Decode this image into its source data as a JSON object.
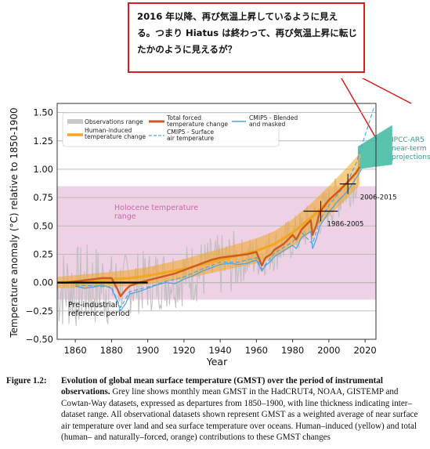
{
  "callout": {
    "lines": [
      "2016 年以降、再び気温上昇しているように見え",
      "る。つまり Hiatus は終わって、再び気温上昇に転じ",
      "たかのように見えるが？"
    ]
  },
  "chart_data": {
    "type": "line",
    "ylabel": "Temperature anomaly (°C) relative to 1850-1900",
    "xlabel": "Year",
    "xlim": [
      1850,
      2026
    ],
    "ylim": [
      -0.5,
      1.58
    ],
    "xticks": [
      1860,
      1880,
      1900,
      1920,
      1940,
      1960,
      1980,
      2000,
      2020
    ],
    "yticks": [
      "1.50",
      "1.25",
      "1.00",
      "0.75",
      "0.50",
      "0.25",
      "0.00",
      "−0.25",
      "−0.50"
    ],
    "legend_position": "top-left",
    "legend": [
      {
        "label": "Observations range",
        "style": "grey-band"
      },
      {
        "label": "Human-induced temperature change",
        "style": "yellow-line"
      },
      {
        "label": "Total forced temperature change",
        "style": "orange-line"
      },
      {
        "label": "CMIP5 - Surface air temperature",
        "style": "blue-dashed"
      },
      {
        "label": "CMIP5 - Blended and masked",
        "style": "blue-solid"
      }
    ],
    "holocene_range": {
      "label": "Holocene temperature range",
      "y": [
        -0.15,
        0.85
      ]
    },
    "preindustrial": {
      "label": "Pre-industrial reference period",
      "x": [
        1850,
        1900
      ],
      "y": 0.0
    },
    "ipcc_projection": {
      "label": "IPCC-AR5 near-term projections",
      "x": [
        2016,
        2035
      ],
      "y_low": [
        1.0,
        1.04
      ],
      "y_high": [
        1.2,
        1.39
      ]
    },
    "period_markers": [
      {
        "label": "1986-2005",
        "x": [
          1986,
          2005
        ],
        "y": 0.63
      },
      {
        "label": "2006-2015",
        "x": [
          2006,
          2015
        ],
        "y": 0.87
      }
    ],
    "colors": {
      "observations": "#bdbdbd",
      "human_induced": "#f2a623",
      "total_forced": "#cf5a1f",
      "cmip5": "#4aa3df",
      "holocene": "#e8c1dc",
      "projection": "#3cb8a0"
    },
    "series": [
      {
        "name": "Total forced temperature change",
        "x": [
          1850,
          1855,
          1860,
          1865,
          1870,
          1875,
          1880,
          1883,
          1885,
          1888,
          1890,
          1895,
          1900,
          1905,
          1910,
          1915,
          1920,
          1925,
          1930,
          1935,
          1940,
          1945,
          1950,
          1955,
          1960,
          1963,
          1965,
          1968,
          1970,
          1975,
          1980,
          1982,
          1985,
          1990,
          1991,
          1993,
          1995,
          2000,
          2005,
          2010,
          2015,
          2017
        ],
        "values": [
          0.0,
          0.0,
          0.01,
          0.02,
          0.03,
          0.04,
          0.04,
          -0.05,
          -0.12,
          -0.06,
          -0.03,
          0.0,
          0.02,
          0.04,
          0.06,
          0.08,
          0.11,
          0.14,
          0.17,
          0.2,
          0.22,
          0.23,
          0.24,
          0.25,
          0.27,
          0.15,
          0.22,
          0.25,
          0.29,
          0.34,
          0.42,
          0.38,
          0.47,
          0.55,
          0.42,
          0.5,
          0.62,
          0.73,
          0.8,
          0.88,
          0.97,
          1.02
        ]
      },
      {
        "name": "Human-induced temperature change",
        "x": [
          1850,
          1860,
          1870,
          1880,
          1890,
          1900,
          1910,
          1920,
          1930,
          1940,
          1950,
          1960,
          1970,
          1980,
          1990,
          2000,
          2010,
          2017
        ],
        "values": [
          0.0,
          0.01,
          0.02,
          0.03,
          0.04,
          0.06,
          0.09,
          0.12,
          0.16,
          0.2,
          0.24,
          0.28,
          0.34,
          0.44,
          0.57,
          0.72,
          0.88,
          1.0
        ]
      },
      {
        "name": "CMIP5 - Blended and masked",
        "x": [
          1860,
          1865,
          1870,
          1875,
          1880,
          1883,
          1885,
          1888,
          1890,
          1895,
          1900,
          1905,
          1910,
          1915,
          1920,
          1925,
          1930,
          1935,
          1940,
          1945,
          1950,
          1955,
          1960,
          1963,
          1965,
          1968,
          1970,
          1975,
          1980,
          1982,
          1985,
          1990,
          1991,
          1993,
          1995,
          2000,
          2005,
          2010,
          2015,
          2018
        ],
        "values": [
          -0.03,
          -0.05,
          -0.04,
          -0.02,
          -0.05,
          -0.16,
          -0.25,
          -0.18,
          -0.1,
          -0.08,
          -0.05,
          -0.02,
          0.0,
          -0.01,
          0.03,
          0.06,
          0.1,
          0.13,
          0.16,
          0.17,
          0.16,
          0.17,
          0.2,
          0.1,
          0.15,
          0.19,
          0.23,
          0.28,
          0.33,
          0.3,
          0.4,
          0.45,
          0.3,
          0.38,
          0.5,
          0.62,
          0.72,
          0.8,
          0.92,
          1.0
        ]
      },
      {
        "name": "CMIP5 - Surface air temperature",
        "x": [
          1860,
          1870,
          1880,
          1885,
          1890,
          1900,
          1910,
          1920,
          1930,
          1940,
          1950,
          1960,
          1963,
          1970,
          1980,
          1985,
          1991,
          1995,
          2000,
          2005,
          2010,
          2015,
          2020,
          2025
        ],
        "values": [
          -0.02,
          -0.03,
          -0.04,
          -0.22,
          -0.08,
          -0.04,
          0.01,
          0.05,
          0.12,
          0.18,
          0.18,
          0.22,
          0.12,
          0.26,
          0.36,
          0.44,
          0.34,
          0.55,
          0.68,
          0.78,
          0.88,
          1.05,
          1.3,
          1.55
        ]
      }
    ]
  },
  "caption": {
    "label": "Figure 1.2:",
    "title": "Evolution of global mean surface temperature (GMST) over the period of instrumental observations.",
    "body": " Grey line shows monthly mean GMST in the HadCRUT4, NOAA, GISTEMP and Cowtan-Way datasets, expressed as departures from 1850–1900, with line thickness indicating inter–dataset range. All observational datasets shown represent GMST as a weighted average of near surface air temperature over land and sea surface temperature over oceans. Human–induced (yellow) and total (human– and naturally–forced, orange) contributions to these GMST changes"
  }
}
